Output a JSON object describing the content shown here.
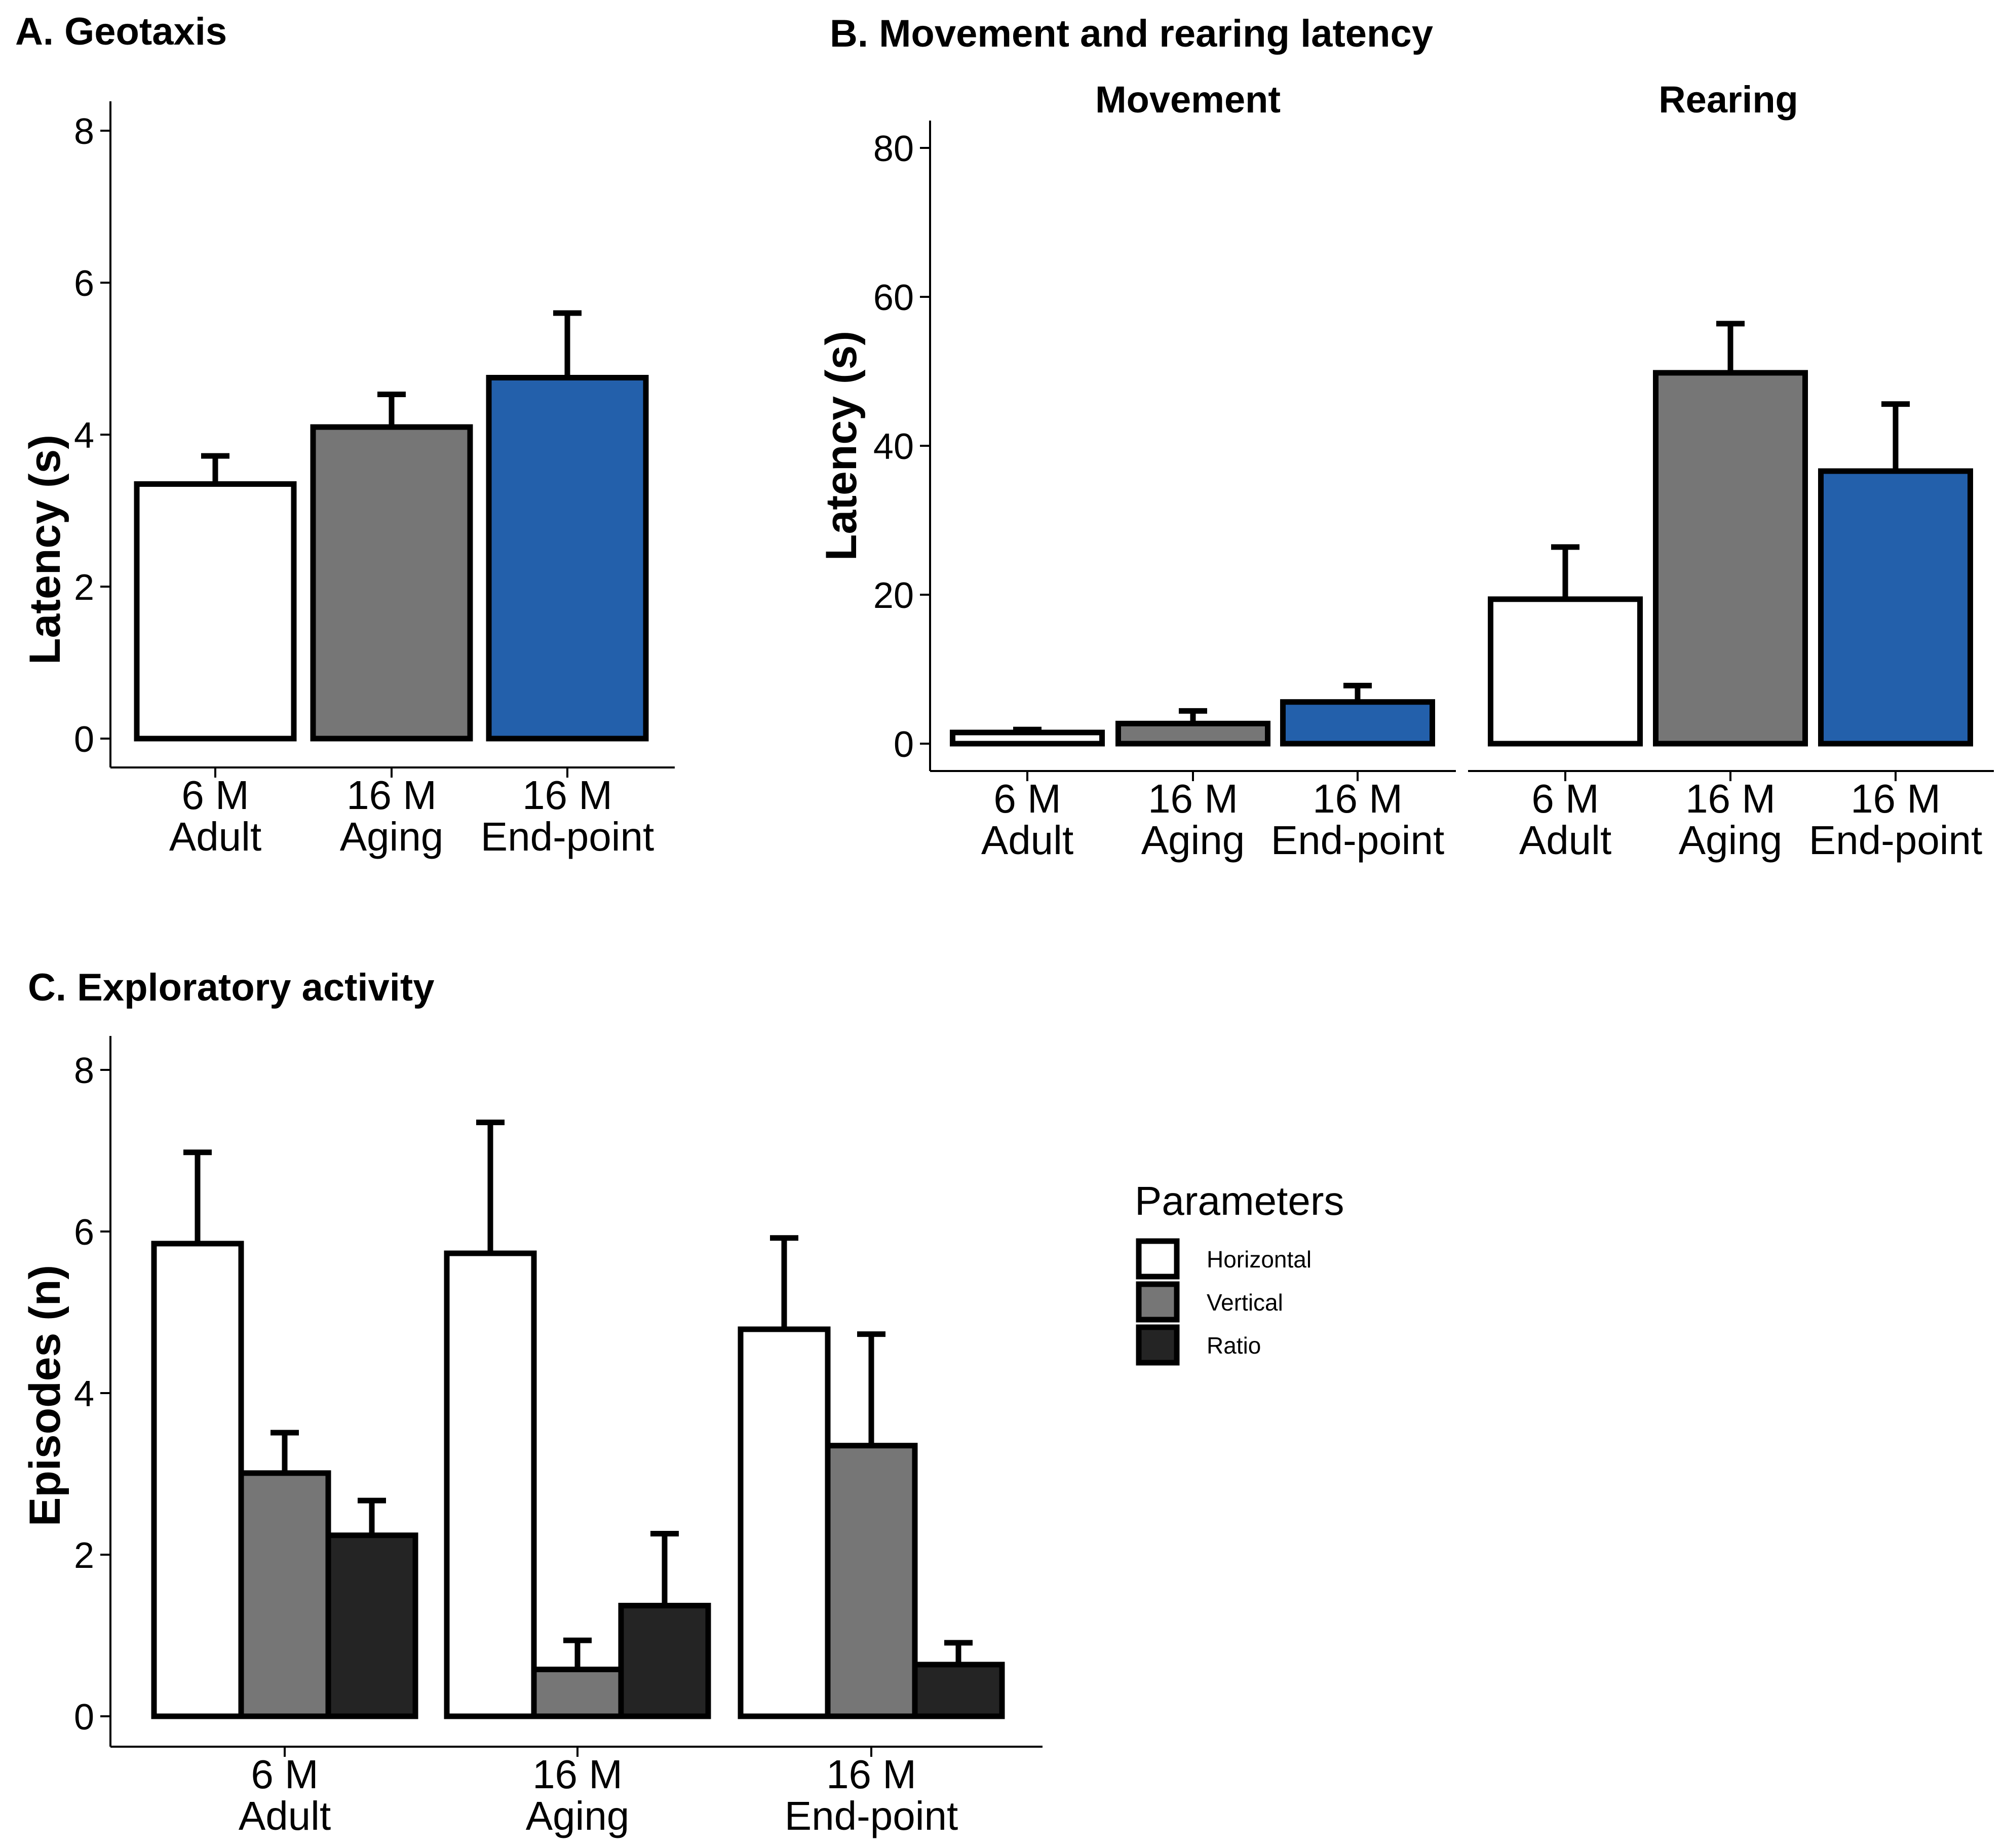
{
  "figure_colors": {
    "adult": "#ffffff",
    "aging": "#767676",
    "endpoint": "#2360ab",
    "ratio": "#242424",
    "outline": "#000000"
  },
  "chart_data": [
    {
      "id": "A",
      "type": "bar",
      "title": "A. Geotaxis",
      "ylabel": "Latency (s)",
      "xlabel": "",
      "ylim": [
        0,
        8
      ],
      "yticks": [
        "0",
        "2",
        "4",
        "6",
        "8"
      ],
      "categories": [
        {
          "line1": "6 M",
          "line2": "Adult"
        },
        {
          "line1": "16 M",
          "line2": "Aging"
        },
        {
          "line1": "16 M",
          "line2": "End-point"
        }
      ],
      "values": [
        3.35,
        4.1,
        4.75
      ],
      "errors": [
        0.37,
        0.43,
        0.85
      ],
      "colors": [
        "#ffffff",
        "#767676",
        "#2360ab"
      ]
    },
    {
      "id": "B",
      "type": "bar",
      "title": "B. Movement and rearing latency",
      "ylabel": "Latency (s)",
      "ylim": [
        0,
        80
      ],
      "yticks": [
        "0",
        "20",
        "40",
        "60",
        "80"
      ],
      "facets": [
        {
          "label": "Movement",
          "categories": [
            {
              "line1": "6 M",
              "line2": "Adult"
            },
            {
              "line1": "16 M",
              "line2": "Aging"
            },
            {
              "line1": "16 M",
              "line2": "End-point"
            }
          ],
          "values": [
            1.5,
            2.7,
            5.6
          ],
          "errors": [
            0.4,
            1.7,
            2.2
          ],
          "colors": [
            "#ffffff",
            "#767676",
            "#2360ab"
          ]
        },
        {
          "label": "Rearing",
          "categories": [
            {
              "line1": "6 M",
              "line2": "Adult"
            },
            {
              "line1": "16 M",
              "line2": "Aging"
            },
            {
              "line1": "16 M",
              "line2": "End-point"
            }
          ],
          "values": [
            19.4,
            49.8,
            36.6
          ],
          "errors": [
            7.0,
            6.6,
            9.0
          ],
          "colors": [
            "#ffffff",
            "#767676",
            "#2360ab"
          ]
        }
      ]
    },
    {
      "id": "C",
      "type": "bar",
      "title": "C. Exploratory activity",
      "ylabel": "Episodes (n)",
      "ylim": [
        0,
        8
      ],
      "yticks": [
        "0",
        "2",
        "4",
        "6",
        "8"
      ],
      "categories": [
        {
          "line1": "6 M",
          "line2": "Adult"
        },
        {
          "line1": "16 M",
          "line2": "Aging"
        },
        {
          "line1": "16 M",
          "line2": "End-point"
        }
      ],
      "series": [
        {
          "name": "Horizontal",
          "color": "#ffffff",
          "values": [
            5.85,
            5.73,
            4.79
          ],
          "errors": [
            1.13,
            1.62,
            1.13
          ]
        },
        {
          "name": "Vertical",
          "color": "#767676",
          "values": [
            3.01,
            0.58,
            3.35
          ],
          "errors": [
            0.5,
            0.36,
            1.38
          ]
        },
        {
          "name": "Ratio",
          "color": "#242424",
          "values": [
            2.24,
            1.37,
            0.64
          ],
          "errors": [
            0.43,
            0.89,
            0.27
          ]
        }
      ],
      "legend": {
        "title": "Parameters",
        "position": "right"
      }
    }
  ]
}
